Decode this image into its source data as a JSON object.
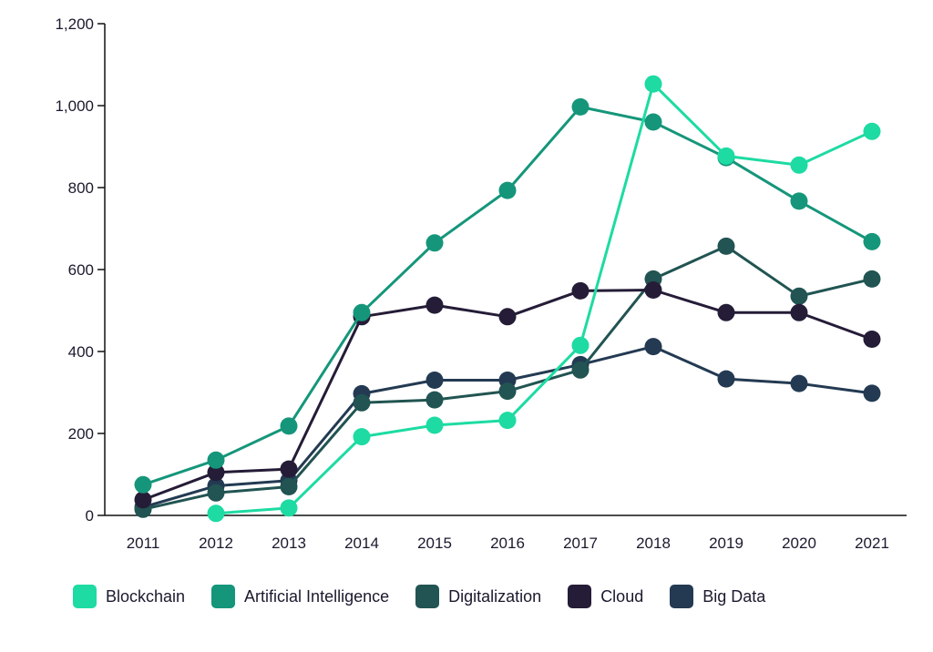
{
  "chart_data": {
    "type": "line",
    "title": "",
    "xlabel": "",
    "ylabel": "",
    "x": [
      "2011",
      "2012",
      "2013",
      "2014",
      "2015",
      "2016",
      "2017",
      "2018",
      "2019",
      "2020",
      "2021"
    ],
    "ylim": [
      0,
      1200
    ],
    "yticks": [
      0,
      200,
      400,
      600,
      800,
      1000,
      1200
    ],
    "ytick_labels": [
      "0",
      "200",
      "400",
      "600",
      "800",
      "1,000",
      "1,200"
    ],
    "grid": false,
    "legend_position": "bottom",
    "series": [
      {
        "name": "Blockchain",
        "color": "#1ddba2",
        "values": [
          null,
          5,
          18,
          192,
          220,
          232,
          415,
          1053,
          877,
          855,
          937
        ]
      },
      {
        "name": "Artificial Intelligence",
        "color": "#15967a",
        "values": [
          75,
          135,
          218,
          495,
          665,
          793,
          997,
          960,
          873,
          767,
          668
        ]
      },
      {
        "name": "Digitalization",
        "color": "#215452",
        "values": [
          15,
          55,
          70,
          275,
          282,
          303,
          355,
          577,
          657,
          535,
          577
        ]
      },
      {
        "name": "Cloud",
        "color": "#251c37",
        "values": [
          38,
          105,
          113,
          485,
          513,
          485,
          548,
          550,
          495,
          495,
          430
        ]
      },
      {
        "name": "Big Data",
        "color": "#233a52",
        "values": [
          20,
          72,
          85,
          297,
          330,
          330,
          368,
          412,
          333,
          322,
          298
        ]
      }
    ]
  }
}
